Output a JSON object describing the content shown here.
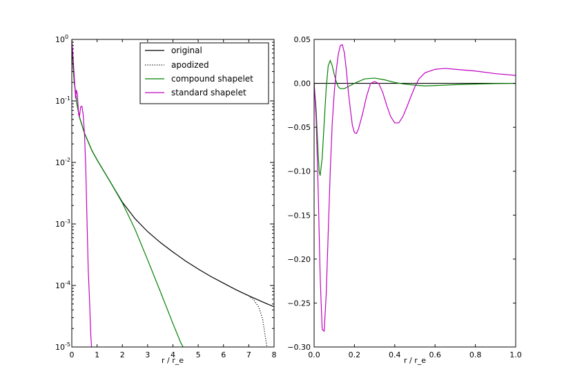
{
  "chart_data": [
    {
      "type": "line",
      "xlabel": "r / r_e",
      "ylabel": "",
      "xlim": [
        0,
        8
      ],
      "ylim": [
        1e-05,
        1
      ],
      "yscale": "log",
      "grid": false,
      "legend_position": "top-right",
      "x_tick_labels": [
        "0",
        "1",
        "2",
        "3",
        "4",
        "5",
        "6",
        "7",
        "8"
      ],
      "y_tick_labels": [
        {
          "base": "10",
          "exp": "0",
          "value": 1
        },
        {
          "base": "10",
          "exp": "-1",
          "value": 0.1
        },
        {
          "base": "10",
          "exp": "-2",
          "value": 0.01
        },
        {
          "base": "10",
          "exp": "-3",
          "value": 0.001
        },
        {
          "base": "10",
          "exp": "-4",
          "value": 0.0001
        },
        {
          "base": "10",
          "exp": "-5",
          "value": 1e-05
        }
      ],
      "series": [
        {
          "name": "original",
          "color": "#000000",
          "dash": "solid",
          "x": [
            0,
            0.05,
            0.1,
            0.2,
            0.3,
            0.5,
            0.8,
            1.0,
            1.5,
            2.0,
            2.5,
            3.0,
            3.5,
            4.0,
            4.5,
            5.0,
            5.5,
            6.0,
            6.5,
            7.0,
            7.5,
            8.0
          ],
          "y": [
            1.0,
            0.35,
            0.2,
            0.09,
            0.055,
            0.03,
            0.0155,
            0.011,
            0.005,
            0.00226,
            0.00122,
            0.00075,
            0.0005,
            0.00035,
            0.00025,
            0.000185,
            0.00014,
            0.000109,
            8.5e-05,
            6.8e-05,
            5.5e-05,
            4.5e-05
          ]
        },
        {
          "name": "apodized",
          "color": "#000000",
          "dash": "dotted",
          "x": [
            7.0,
            7.2,
            7.4,
            7.55,
            7.65,
            7.72
          ],
          "y": [
            6.8e-05,
            5.8e-05,
            4.4e-05,
            2.8e-05,
            1.5e-05,
            1e-05
          ]
        },
        {
          "name": "compound shapelet",
          "color": "#008000",
          "dash": "solid",
          "x": [
            0,
            0.05,
            0.1,
            0.2,
            0.3,
            0.5,
            0.8,
            1.0,
            1.5,
            2.0,
            2.5,
            3.0,
            3.5,
            4.0,
            4.3,
            4.4
          ],
          "y": [
            0.95,
            0.35,
            0.2,
            0.09,
            0.055,
            0.03,
            0.0155,
            0.011,
            0.005,
            0.0022,
            0.00082,
            0.00026,
            8e-05,
            2.4e-05,
            1.2e-05,
            1e-05
          ]
        },
        {
          "name": "standard shapelet",
          "color": "#c000c0",
          "dash": "solid",
          "x": [
            0,
            0.04,
            0.08,
            0.12,
            0.15,
            0.18,
            0.22,
            0.27,
            0.3,
            0.35,
            0.4,
            0.45,
            0.5,
            0.55,
            0.6,
            0.65,
            0.7,
            0.75,
            0.78
          ],
          "y": [
            0.95,
            0.6,
            0.32,
            0.18,
            0.11,
            0.15,
            0.13,
            0.06,
            0.055,
            0.08,
            0.082,
            0.06,
            0.03,
            0.009,
            0.0012,
            0.00018,
            6e-05,
            1.6e-05,
            1e-05
          ]
        }
      ]
    },
    {
      "type": "line",
      "xlabel": "r / r_e",
      "ylabel": "",
      "xlim": [
        0,
        1.0
      ],
      "ylim": [
        -0.3,
        0.05
      ],
      "grid": false,
      "x_tick_labels": [
        "0.0",
        "0.2",
        "0.4",
        "0.6",
        "0.8",
        "1.0"
      ],
      "y_tick_labels": [
        "0.05",
        "0.00",
        "−0.05",
        "−0.10",
        "−0.15",
        "−0.20",
        "−0.25",
        "−0.30"
      ],
      "series": [
        {
          "name": "original",
          "color": "#000000",
          "x": [
            0,
            1.0
          ],
          "y": [
            0,
            0
          ]
        },
        {
          "name": "compound shapelet",
          "color": "#008000",
          "x": [
            0,
            0.01,
            0.02,
            0.025,
            0.03,
            0.04,
            0.05,
            0.06,
            0.07,
            0.08,
            0.09,
            0.1,
            0.11,
            0.12,
            0.13,
            0.15,
            0.2,
            0.25,
            0.3,
            0.35,
            0.4,
            0.45,
            0.5,
            0.55,
            0.6,
            0.7,
            0.8,
            0.9,
            1.0
          ],
          "y": [
            0,
            -0.03,
            -0.08,
            -0.1,
            -0.105,
            -0.085,
            -0.045,
            -0.005,
            0.02,
            0.026,
            0.02,
            0.01,
            0.002,
            -0.004,
            -0.006,
            -0.006,
            0.0,
            0.005,
            0.006,
            0.004,
            0.001,
            -0.001,
            -0.002,
            -0.003,
            -0.0025,
            -0.0015,
            -0.0008,
            -0.0003,
            0.0
          ]
        },
        {
          "name": "standard shapelet",
          "color": "#c000c0",
          "x": [
            0,
            0.01,
            0.02,
            0.03,
            0.04,
            0.05,
            0.06,
            0.07,
            0.08,
            0.09,
            0.1,
            0.11,
            0.12,
            0.13,
            0.14,
            0.15,
            0.16,
            0.17,
            0.18,
            0.19,
            0.2,
            0.21,
            0.22,
            0.24,
            0.26,
            0.28,
            0.3,
            0.32,
            0.34,
            0.36,
            0.38,
            0.4,
            0.42,
            0.44,
            0.46,
            0.48,
            0.5,
            0.52,
            0.55,
            0.6,
            0.65,
            0.7,
            0.8,
            0.9,
            1.0
          ],
          "y": [
            0,
            -0.04,
            -0.12,
            -0.22,
            -0.28,
            -0.282,
            -0.24,
            -0.17,
            -0.1,
            -0.045,
            -0.01,
            0.015,
            0.033,
            0.043,
            0.044,
            0.035,
            0.015,
            -0.01,
            -0.03,
            -0.048,
            -0.056,
            -0.057,
            -0.052,
            -0.035,
            -0.015,
            0.0,
            0.002,
            0.0,
            -0.01,
            -0.025,
            -0.038,
            -0.045,
            -0.045,
            -0.038,
            -0.027,
            -0.015,
            -0.004,
            0.005,
            0.012,
            0.016,
            0.017,
            0.016,
            0.014,
            0.011,
            0.009
          ]
        }
      ]
    }
  ]
}
